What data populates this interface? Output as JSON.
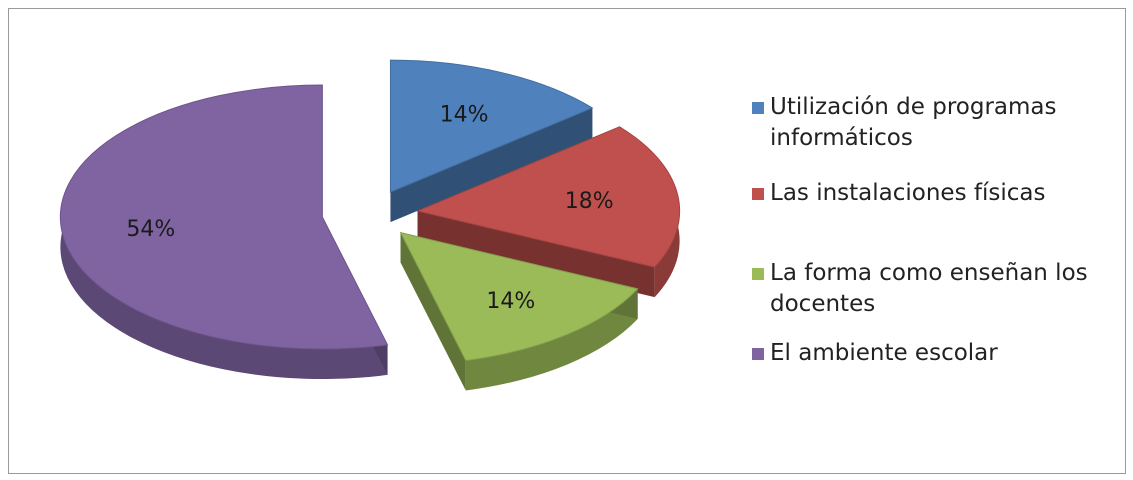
{
  "chart_data": {
    "type": "pie",
    "title": "",
    "legend_position": "right",
    "slices": [
      {
        "label": "Utilización de programas informáticos",
        "value": 14,
        "value_label": "14%",
        "color": "#4f81bd"
      },
      {
        "label": "Las instalaciones físicas",
        "value": 18,
        "value_label": "18%",
        "color": "#c0504d"
      },
      {
        "label": "La forma como enseñan los docentes",
        "value": 14,
        "value_label": "14%",
        "color": "#9bbb59"
      },
      {
        "label": "El ambiente escolar",
        "value": 54,
        "value_label": "54%",
        "color": "#8064a2"
      }
    ]
  }
}
